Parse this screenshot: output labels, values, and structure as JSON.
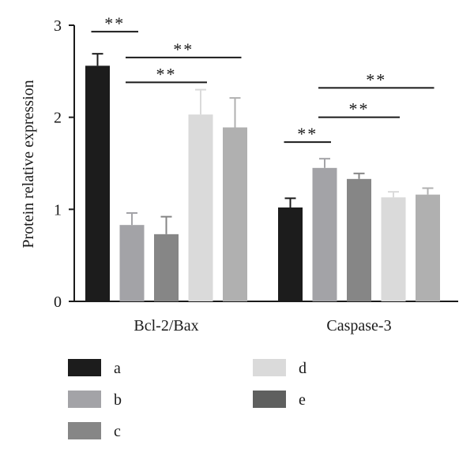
{
  "chart_data": {
    "type": "bar",
    "title": "",
    "xlabel": "",
    "ylabel": "Protein relative expression",
    "ylim": [
      0,
      3
    ],
    "yticks": [
      0,
      1,
      2,
      3
    ],
    "grid": false,
    "legend_position": "bottom",
    "categories": [
      "Bcl-2/Bax",
      "Caspase-3"
    ],
    "series": [
      {
        "name": "a",
        "color": "#1c1c1c",
        "values": [
          2.56,
          1.02
        ],
        "errors": [
          0.13,
          0.1
        ]
      },
      {
        "name": "b",
        "color": "#a3a3a7",
        "values": [
          0.83,
          1.45
        ],
        "errors": [
          0.13,
          0.1
        ]
      },
      {
        "name": "c",
        "color": "#868686",
        "values": [
          0.73,
          1.33
        ],
        "errors": [
          0.19,
          0.06
        ]
      },
      {
        "name": "d",
        "color": "#dadada",
        "values": [
          2.03,
          1.13
        ],
        "errors": [
          0.27,
          0.06
        ]
      },
      {
        "name": "e",
        "color": "#b0b0b0",
        "values": [
          1.89,
          1.16
        ],
        "errors": [
          0.32,
          0.07
        ]
      }
    ],
    "legend_colors": {
      "e": "#5f605f"
    },
    "significance": [
      {
        "category": 0,
        "from": 0,
        "to": 1,
        "y": 2.93,
        "label": "**"
      },
      {
        "category": 0,
        "from": 1,
        "to": 3,
        "y": 2.38,
        "label": "**"
      },
      {
        "category": 0,
        "from": 1,
        "to": 4,
        "y": 2.65,
        "label": "**"
      },
      {
        "category": 1,
        "from": 0,
        "to": 1,
        "y": 1.73,
        "label": "**"
      },
      {
        "category": 1,
        "from": 1,
        "to": 3,
        "y": 2.0,
        "label": "**"
      },
      {
        "category": 1,
        "from": 1,
        "to": 4,
        "y": 2.32,
        "label": "**"
      }
    ]
  }
}
